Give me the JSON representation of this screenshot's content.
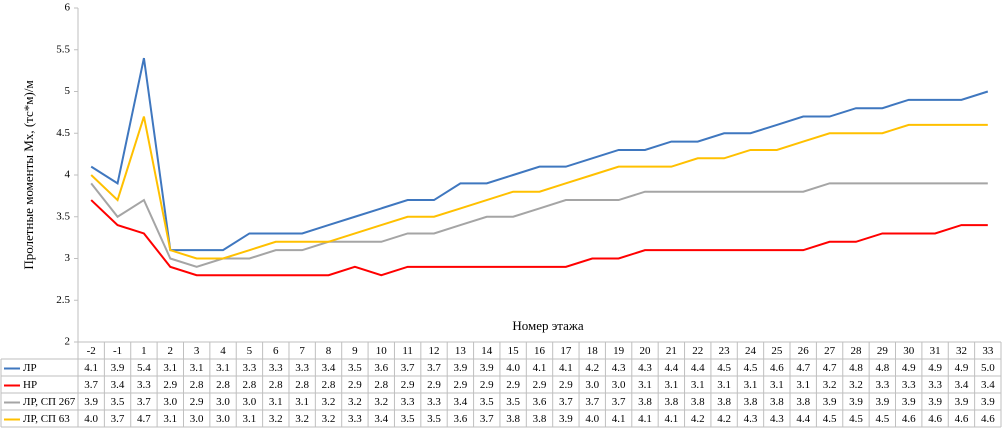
{
  "chart_data": {
    "type": "line",
    "y_label": "Пролетные моменты Мх, (тс*м)/м",
    "x_label": "Номер этажа",
    "categories": [
      "-2",
      "-1",
      "1",
      "2",
      "3",
      "4",
      "5",
      "6",
      "7",
      "8",
      "9",
      "10",
      "11",
      "12",
      "13",
      "14",
      "15",
      "16",
      "17",
      "18",
      "19",
      "20",
      "21",
      "22",
      "23",
      "24",
      "25",
      "26",
      "27",
      "28",
      "29",
      "30",
      "31",
      "32",
      "33"
    ],
    "ylim": [
      2,
      6
    ],
    "yticks": [
      2,
      2.5,
      3,
      3.5,
      4,
      4.5,
      5,
      5.5,
      6
    ],
    "grid": false,
    "series": [
      {
        "name": "ЛР",
        "color": "#3f77bf",
        "values": [
          4.1,
          3.9,
          5.4,
          3.1,
          3.1,
          3.1,
          3.3,
          3.3,
          3.3,
          3.4,
          3.5,
          3.6,
          3.7,
          3.7,
          3.9,
          3.9,
          4.0,
          4.1,
          4.1,
          4.2,
          4.3,
          4.3,
          4.4,
          4.4,
          4.5,
          4.5,
          4.6,
          4.7,
          4.7,
          4.8,
          4.8,
          4.9,
          4.9,
          4.9,
          5.0
        ],
        "value_labels": [
          "4.1",
          "3.9",
          "5.4",
          "3.1",
          "3.1",
          "3.1",
          "3.3",
          "3.3",
          "3.3",
          "3.4",
          "3.5",
          "3.6",
          "3.7",
          "3.7",
          "3.9",
          "3.9",
          "4.0",
          "4.1",
          "4.1",
          "4.2",
          "4.3",
          "4.3",
          "4.4",
          "4.4",
          "4.5",
          "4.5",
          "4.6",
          "4.7",
          "4.7",
          "4.8",
          "4.8",
          "4.9",
          "4.9",
          "4.9",
          "5.0"
        ]
      },
      {
        "name": "НР",
        "color": "#ff0000",
        "values": [
          3.7,
          3.4,
          3.3,
          2.9,
          2.8,
          2.8,
          2.8,
          2.8,
          2.8,
          2.8,
          2.9,
          2.8,
          2.9,
          2.9,
          2.9,
          2.9,
          2.9,
          2.9,
          2.9,
          3.0,
          3.0,
          3.1,
          3.1,
          3.1,
          3.1,
          3.1,
          3.1,
          3.1,
          3.2,
          3.2,
          3.3,
          3.3,
          3.3,
          3.4,
          3.4
        ],
        "value_labels": [
          "3.7",
          "3.4",
          "3.3",
          "2.9",
          "2.8",
          "2.8",
          "2.8",
          "2.8",
          "2.8",
          "2.8",
          "2.9",
          "2.8",
          "2.9",
          "2.9",
          "2.9",
          "2.9",
          "2.9",
          "2.9",
          "2.9",
          "3.0",
          "3.0",
          "3.1",
          "3.1",
          "3.1",
          "3.1",
          "3.1",
          "3.1",
          "3.1",
          "3.2",
          "3.2",
          "3.3",
          "3.3",
          "3.3",
          "3.4",
          "3.4"
        ]
      },
      {
        "name": "ЛР, СП 267",
        "color": "#a5a5a5",
        "values": [
          3.9,
          3.5,
          3.7,
          3.0,
          2.9,
          3.0,
          3.0,
          3.1,
          3.1,
          3.2,
          3.2,
          3.2,
          3.3,
          3.3,
          3.4,
          3.5,
          3.5,
          3.6,
          3.7,
          3.7,
          3.7,
          3.8,
          3.8,
          3.8,
          3.8,
          3.8,
          3.8,
          3.8,
          3.9,
          3.9,
          3.9,
          3.9,
          3.9,
          3.9,
          3.9
        ],
        "value_labels": [
          "3.9",
          "3.5",
          "3.7",
          "3.0",
          "2.9",
          "3.0",
          "3.0",
          "3.1",
          "3.1",
          "3.2",
          "3.2",
          "3.2",
          "3.3",
          "3.3",
          "3.4",
          "3.5",
          "3.5",
          "3.6",
          "3.7",
          "3.7",
          "3.7",
          "3.8",
          "3.8",
          "3.8",
          "3.8",
          "3.8",
          "3.8",
          "3.8",
          "3.9",
          "3.9",
          "3.9",
          "3.9",
          "3.9",
          "3.9",
          "3.9"
        ]
      },
      {
        "name": "ЛР, СП 63",
        "color": "#ffc000",
        "values": [
          4.0,
          3.7,
          4.7,
          3.1,
          3.0,
          3.0,
          3.1,
          3.2,
          3.2,
          3.2,
          3.3,
          3.4,
          3.5,
          3.5,
          3.6,
          3.7,
          3.8,
          3.8,
          3.9,
          4.0,
          4.1,
          4.1,
          4.1,
          4.2,
          4.2,
          4.3,
          4.3,
          4.4,
          4.5,
          4.5,
          4.5,
          4.6,
          4.6,
          4.6,
          4.6
        ],
        "value_labels": [
          "4.0",
          "3.7",
          "4.7",
          "3.1",
          "3.0",
          "3.0",
          "3.1",
          "3.2",
          "3.2",
          "3.2",
          "3.3",
          "3.4",
          "3.5",
          "3.5",
          "3.6",
          "3.7",
          "3.8",
          "3.8",
          "3.9",
          "4.0",
          "4.1",
          "4.1",
          "4.1",
          "4.2",
          "4.2",
          "4.3",
          "4.3",
          "4.4",
          "4.5",
          "4.5",
          "4.5",
          "4.6",
          "4.6",
          "4.6",
          "4.6"
        ]
      }
    ]
  }
}
